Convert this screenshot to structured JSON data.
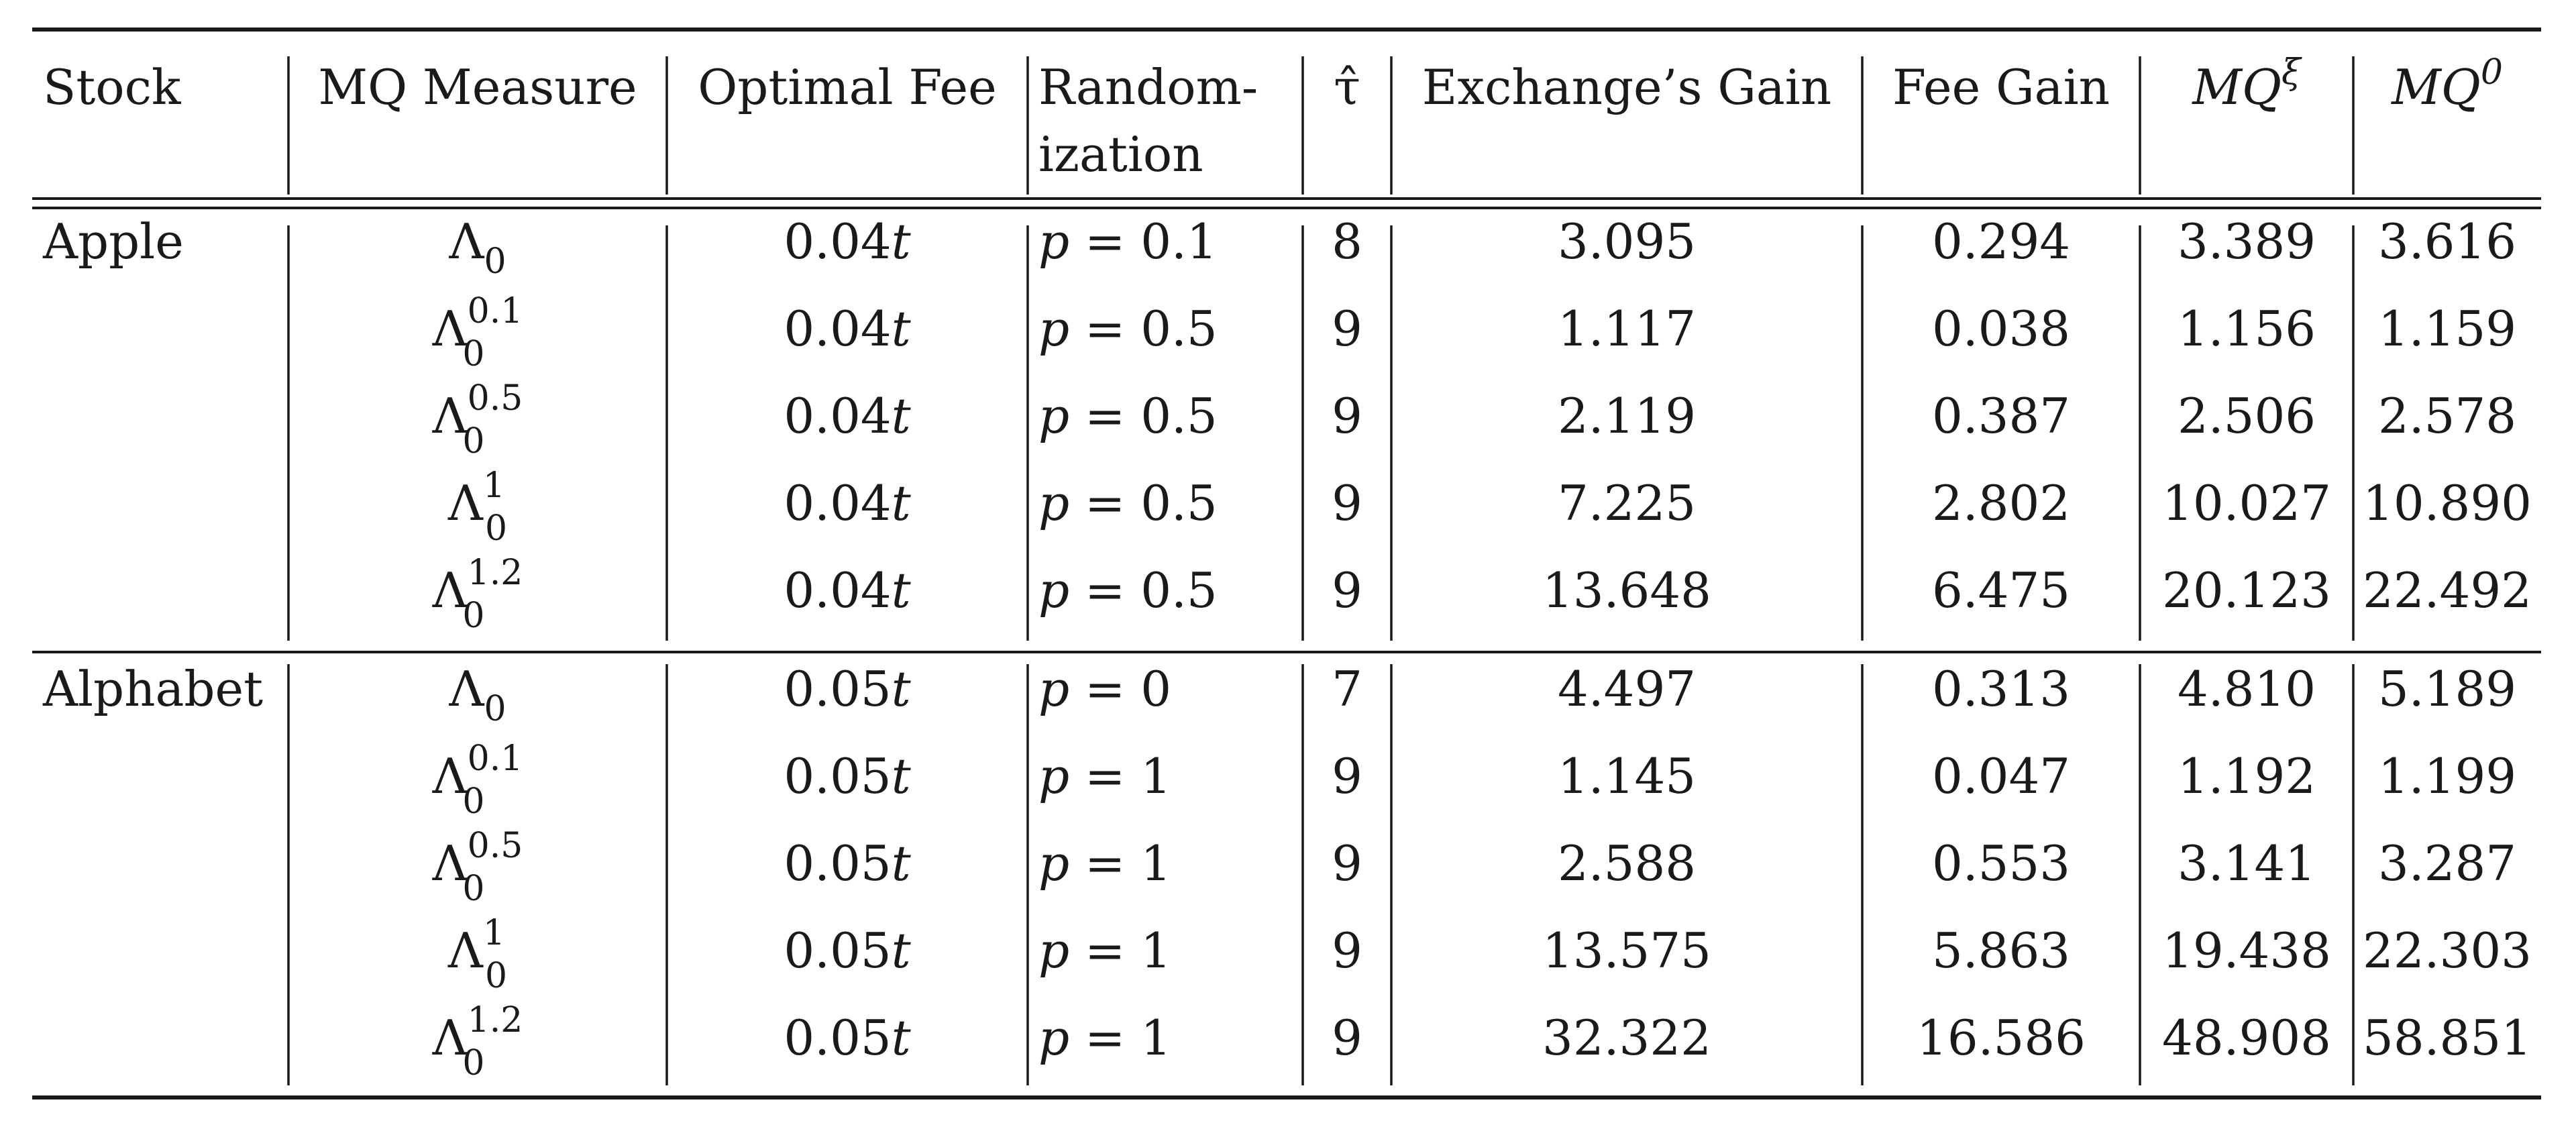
{
  "table": {
    "headers": [
      {
        "key": "stock",
        "lines": [
          "Stock"
        ]
      },
      {
        "key": "mq_measure",
        "lines": [
          "MQ Measure"
        ]
      },
      {
        "key": "optimal_fee",
        "lines": [
          "Optimal Fee"
        ]
      },
      {
        "key": "randomization",
        "lines": [
          "Random-",
          "ization"
        ]
      },
      {
        "key": "tau_hat",
        "lines": [
          "τ̂"
        ]
      },
      {
        "key": "exchange_gain",
        "lines": [
          "Exchange’s Gain"
        ]
      },
      {
        "key": "fee_gain",
        "lines": [
          "Fee Gain"
        ]
      },
      {
        "key": "mq_xi",
        "base": "MQ",
        "sup": "ξ"
      },
      {
        "key": "mq_0",
        "base": "MQ",
        "sup": "0"
      }
    ],
    "groups": [
      {
        "stock": "Apple",
        "rows": [
          {
            "measure": {
              "base": "Λ",
              "sub": "0",
              "sup": ""
            },
            "fee": {
              "num": "0.04",
              "var": "t"
            },
            "rand": {
              "var": "p",
              "eq": " = ",
              "val": "0.1"
            },
            "tau": "8",
            "exchange_gain": "3.095",
            "fee_gain": "0.294",
            "mq_xi": "3.389",
            "mq_0": "3.616"
          },
          {
            "measure": {
              "base": "Λ",
              "sub": "0",
              "sup": "0.1"
            },
            "fee": {
              "num": "0.04",
              "var": "t"
            },
            "rand": {
              "var": "p",
              "eq": " = ",
              "val": "0.5"
            },
            "tau": "9",
            "exchange_gain": "1.117",
            "fee_gain": "0.038",
            "mq_xi": "1.156",
            "mq_0": "1.159"
          },
          {
            "measure": {
              "base": "Λ",
              "sub": "0",
              "sup": "0.5"
            },
            "fee": {
              "num": "0.04",
              "var": "t"
            },
            "rand": {
              "var": "p",
              "eq": " = ",
              "val": "0.5"
            },
            "tau": "9",
            "exchange_gain": "2.119",
            "fee_gain": "0.387",
            "mq_xi": "2.506",
            "mq_0": "2.578"
          },
          {
            "measure": {
              "base": "Λ",
              "sub": "0",
              "sup": "1"
            },
            "fee": {
              "num": "0.04",
              "var": "t"
            },
            "rand": {
              "var": "p",
              "eq": " = ",
              "val": "0.5"
            },
            "tau": "9",
            "exchange_gain": "7.225",
            "fee_gain": "2.802",
            "mq_xi": "10.027",
            "mq_0": "10.890"
          },
          {
            "measure": {
              "base": "Λ",
              "sub": "0",
              "sup": "1.2"
            },
            "fee": {
              "num": "0.04",
              "var": "t"
            },
            "rand": {
              "var": "p",
              "eq": " = ",
              "val": "0.5"
            },
            "tau": "9",
            "exchange_gain": "13.648",
            "fee_gain": "6.475",
            "mq_xi": "20.123",
            "mq_0": "22.492"
          }
        ]
      },
      {
        "stock": "Alphabet",
        "rows": [
          {
            "measure": {
              "base": "Λ",
              "sub": "0",
              "sup": ""
            },
            "fee": {
              "num": "0.05",
              "var": "t"
            },
            "rand": {
              "var": "p",
              "eq": " = ",
              "val": "0"
            },
            "tau": "7",
            "exchange_gain": "4.497",
            "fee_gain": "0.313",
            "mq_xi": "4.810",
            "mq_0": "5.189"
          },
          {
            "measure": {
              "base": "Λ",
              "sub": "0",
              "sup": "0.1"
            },
            "fee": {
              "num": "0.05",
              "var": "t"
            },
            "rand": {
              "var": "p",
              "eq": " = ",
              "val": "1"
            },
            "tau": "9",
            "exchange_gain": "1.145",
            "fee_gain": "0.047",
            "mq_xi": "1.192",
            "mq_0": "1.199"
          },
          {
            "measure": {
              "base": "Λ",
              "sub": "0",
              "sup": "0.5"
            },
            "fee": {
              "num": "0.05",
              "var": "t"
            },
            "rand": {
              "var": "p",
              "eq": " = ",
              "val": "1"
            },
            "tau": "9",
            "exchange_gain": "2.588",
            "fee_gain": "0.553",
            "mq_xi": "3.141",
            "mq_0": "3.287"
          },
          {
            "measure": {
              "base": "Λ",
              "sub": "0",
              "sup": "1"
            },
            "fee": {
              "num": "0.05",
              "var": "t"
            },
            "rand": {
              "var": "p",
              "eq": " = ",
              "val": "1"
            },
            "tau": "9",
            "exchange_gain": "13.575",
            "fee_gain": "5.863",
            "mq_xi": "19.438",
            "mq_0": "22.303"
          },
          {
            "measure": {
              "base": "Λ",
              "sub": "0",
              "sup": "1.2"
            },
            "fee": {
              "num": "0.05",
              "var": "t"
            },
            "rand": {
              "var": "p",
              "eq": " = ",
              "val": "1"
            },
            "tau": "9",
            "exchange_gain": "32.322",
            "fee_gain": "16.586",
            "mq_xi": "48.908",
            "mq_0": "58.851"
          }
        ]
      }
    ]
  }
}
